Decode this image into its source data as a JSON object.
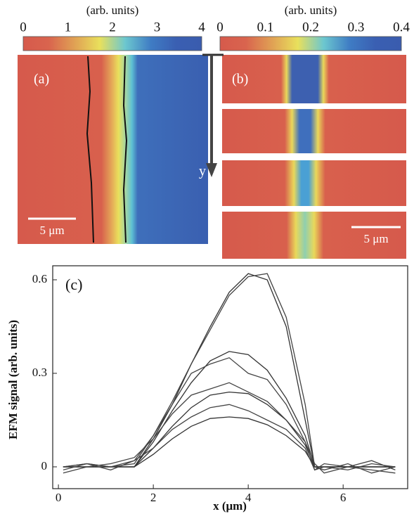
{
  "chart_data": [
    {
      "type": "colorbar",
      "title": "(arb. units)",
      "xlim": [
        0,
        4
      ],
      "xticks": [
        0,
        1,
        2,
        3,
        4
      ],
      "colors": [
        "#d65a4c",
        "#d9644e",
        "#e0a054",
        "#e9e05c",
        "#6cc7cf",
        "#3f7cc4",
        "#3a5fb2",
        "#3a5cae"
      ],
      "panel_label": "(a)",
      "scale_bar": "5 μm",
      "axis_label": "y"
    },
    {
      "type": "colorbar",
      "title": "(arb. units)",
      "xlim": [
        0,
        0.4
      ],
      "xticks": [
        0,
        0.1,
        0.2,
        0.3,
        0.4
      ],
      "colors": [
        "#d65a4c",
        "#d9644e",
        "#e0a054",
        "#e9e05c",
        "#6cc7cf",
        "#3f7cc4",
        "#3a5fb2",
        "#3a5cae"
      ],
      "panel_label": "(b)",
      "scale_bar": "5 μm"
    },
    {
      "type": "line",
      "panel_label": "(c)",
      "xlabel": "x (μm)",
      "ylabel": "EFM signal (arb. units)",
      "xlim": [
        -0.12,
        7.36
      ],
      "ylim": [
        -0.07,
        0.645
      ],
      "xticks": [
        0,
        2,
        4,
        6
      ],
      "yticks": [
        0,
        0.3,
        0.6
      ],
      "x": [
        0.1,
        0.6,
        1.1,
        1.6,
        2.0,
        2.4,
        2.8,
        3.2,
        3.6,
        4.0,
        4.4,
        4.8,
        5.2,
        5.4,
        5.6,
        6.1,
        6.6,
        7.1
      ],
      "series": [
        {
          "color": "#333333",
          "values": [
            0,
            0,
            0,
            0,
            0.09,
            0.2,
            0.33,
            0.45,
            0.56,
            0.62,
            0.6,
            0.45,
            0.15,
            0,
            0,
            0,
            0,
            0
          ]
        },
        {
          "color": "#333333",
          "values": [
            0,
            0,
            0,
            0,
            0.08,
            0.18,
            0.27,
            0.34,
            0.37,
            0.36,
            0.31,
            0.22,
            0.1,
            0,
            0,
            0,
            0,
            0
          ]
        },
        {
          "color": "#333333",
          "values": [
            0,
            0,
            0,
            0,
            0.06,
            0.13,
            0.19,
            0.23,
            0.24,
            0.235,
            0.2,
            0.15,
            0.07,
            0,
            0,
            0,
            0,
            0
          ]
        },
        {
          "color": "#333333",
          "values": [
            0,
            0,
            0,
            0,
            0.04,
            0.09,
            0.13,
            0.155,
            0.16,
            0.155,
            0.135,
            0.1,
            0.05,
            0,
            0,
            0,
            0,
            0
          ]
        },
        {
          "color": "#444444",
          "values": [
            0,
            0.01,
            -0.01,
            0.02,
            0.1,
            0.21,
            0.33,
            0.44,
            0.55,
            0.61,
            0.62,
            0.48,
            0.2,
            0,
            -0.01,
            0.01,
            -0.02,
            0
          ]
        },
        {
          "color": "#444444",
          "values": [
            -0.01,
            0.01,
            0,
            0.01,
            0.1,
            0.2,
            0.3,
            0.33,
            0.35,
            0.3,
            0.28,
            0.2,
            0.08,
            -0.01,
            0.01,
            0,
            -0.01,
            -0.02
          ]
        },
        {
          "color": "#444444",
          "values": [
            -0.02,
            0,
            0.01,
            0.03,
            0.09,
            0.17,
            0.23,
            0.25,
            0.27,
            0.24,
            0.21,
            0.15,
            0.08,
            0.01,
            -0.02,
            0,
            0.02,
            -0.01
          ]
        },
        {
          "color": "#444444",
          "values": [
            0,
            0.01,
            0,
            0.02,
            0.06,
            0.12,
            0.16,
            0.19,
            0.2,
            0.18,
            0.15,
            0.12,
            0.06,
            -0.01,
            0,
            -0.01,
            0.01,
            0
          ]
        }
      ]
    }
  ]
}
